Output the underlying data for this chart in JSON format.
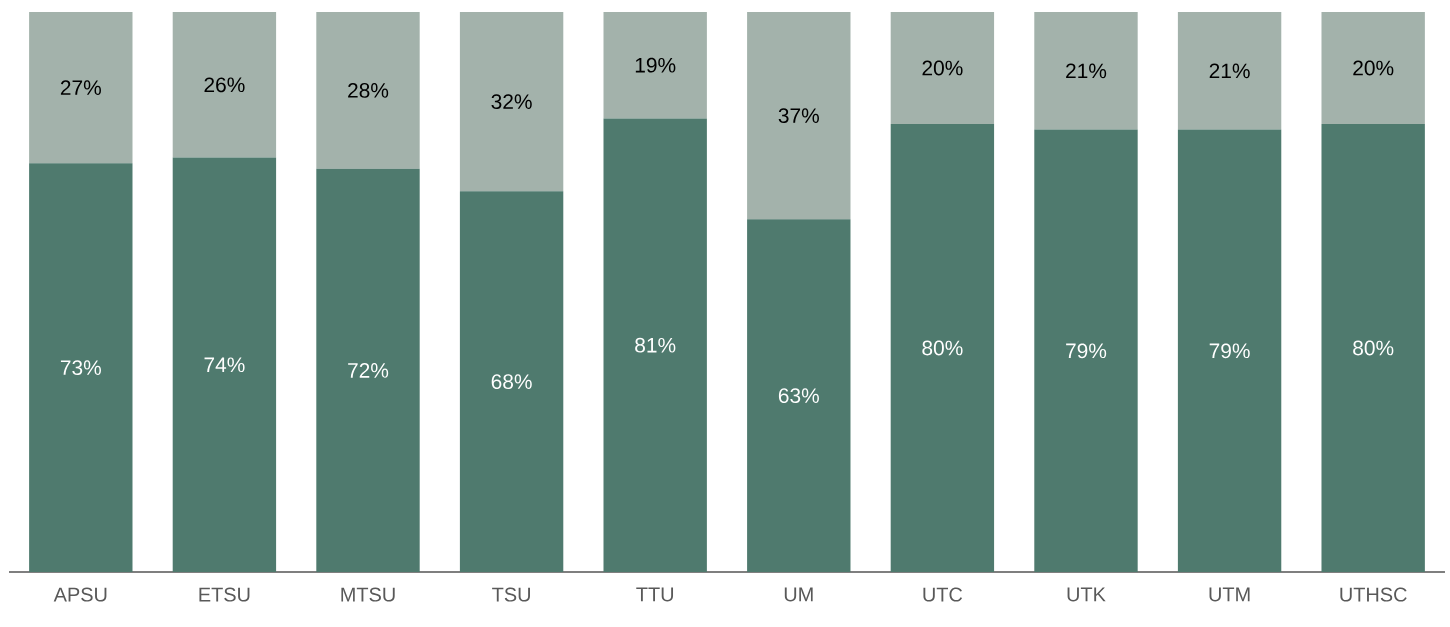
{
  "chart_data": {
    "type": "bar",
    "stacked": true,
    "categories": [
      "APSU",
      "ETSU",
      "MTSU",
      "TSU",
      "TTU",
      "UM",
      "UTC",
      "UTK",
      "UTM",
      "UTHSC"
    ],
    "series": [
      {
        "color": "#4f7a6e",
        "values": [
          73,
          74,
          72,
          68,
          81,
          63,
          80,
          79,
          79,
          80
        ],
        "value_labels": [
          "73%",
          "74%",
          "72%",
          "68%",
          "81%",
          "63%",
          "80%",
          "79%",
          "79%",
          "80%"
        ]
      },
      {
        "color": "#a3b2ab",
        "values": [
          27,
          26,
          28,
          32,
          19,
          37,
          20,
          21,
          21,
          20
        ],
        "value_labels": [
          "27%",
          "26%",
          "28%",
          "32%",
          "19%",
          "37%",
          "20%",
          "21%",
          "21%",
          "20%"
        ]
      }
    ]
  }
}
